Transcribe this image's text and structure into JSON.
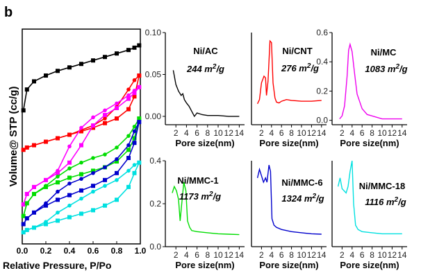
{
  "panel_label": "b",
  "chart_data": [
    {
      "id": "isotherm",
      "type": "line",
      "xlabel": "Relative Pressure, P/Po",
      "ylabel": "Volume@ STP (cc/g)",
      "xlim": [
        0,
        1
      ],
      "xticks": [
        "0.0",
        "0.2",
        "0.4",
        "0.6",
        "0.8",
        "1.0"
      ],
      "x": [
        0.01,
        0.04,
        0.1,
        0.2,
        0.3,
        0.4,
        0.5,
        0.6,
        0.7,
        0.8,
        0.9,
        0.95,
        0.99
      ],
      "series": [
        {
          "color": "#000000",
          "adsorption": [
            10,
            11.8,
            12.5,
            13,
            13.4,
            13.7,
            14.0,
            14.3,
            14.6,
            14.9,
            15.2,
            15.4,
            15.6
          ],
          "desorption": null
        },
        {
          "color": "#ff0000",
          "adsorption": [
            6.6,
            6.8,
            7.0,
            7.3,
            7.6,
            7.9,
            8.2,
            8.5,
            8.9,
            9.3,
            10.1,
            11.2,
            13.0
          ],
          "desorption": [
            6.6,
            6.8,
            7.0,
            7.3,
            7.6,
            7.9,
            8.3,
            8.7,
            9.3,
            10.3,
            11.8,
            12.6,
            13.0
          ]
        },
        {
          "color": "#ff00ff",
          "adsorption": [
            1.9,
            2.8,
            3.4,
            4.0,
            4.6,
            5.5,
            7.0,
            8.7,
            9.6,
            10.2,
            11.0,
            11.5,
            12.0
          ],
          "desorption": [
            1.9,
            2.8,
            3.4,
            4.0,
            4.8,
            6.9,
            8.5,
            9.4,
            10.0,
            10.6,
            11.3,
            11.7,
            12.0
          ]
        },
        {
          "color": "#00dd00",
          "adsorption": [
            0.9,
            2.0,
            2.8,
            3.4,
            3.8,
            4.2,
            4.5,
            4.8,
            5.1,
            5.6,
            6.6,
            7.6,
            9.3
          ],
          "desorption": [
            0.9,
            2.0,
            2.8,
            3.5,
            4.3,
            5.0,
            5.5,
            5.9,
            6.2,
            6.8,
            7.8,
            8.6,
            9.3
          ]
        },
        {
          "color": "#0000cc",
          "adsorption": [
            0.2,
            0.7,
            1.2,
            1.8,
            2.3,
            2.7,
            3.1,
            3.5,
            4.0,
            4.6,
            5.9,
            7.2,
            9.0
          ],
          "desorption": [
            0.2,
            0.7,
            1.2,
            2.0,
            3.0,
            3.7,
            4.1,
            4.6,
            5.1,
            5.8,
            7.0,
            8.2,
            9.0
          ]
        },
        {
          "color": "#00e0e0",
          "adsorption": [
            -0.5,
            -0.3,
            -0.1,
            0.2,
            0.5,
            0.8,
            1.1,
            1.4,
            1.8,
            2.3,
            3.4,
            4.6,
            5.5
          ],
          "desorption": [
            -0.5,
            -0.3,
            -0.1,
            0.4,
            1.2,
            1.8,
            2.4,
            3.0,
            3.5,
            4.0,
            4.8,
            5.3,
            5.5
          ]
        }
      ]
    },
    {
      "id": "psd-ac",
      "type": "line",
      "xlabel": "Pore size(nm)",
      "name": "Ni/AC",
      "area_value": "244",
      "area_unit": "m",
      "area_exp": "2",
      "area_tail": "/g",
      "color": "#000000",
      "xlim": [
        0,
        15
      ],
      "ylim": [
        -0.01,
        0.1
      ],
      "xticks": [
        "2",
        "4",
        "6",
        "8",
        "10",
        "12",
        "14"
      ],
      "yticks": [
        "0.00",
        "0.05",
        "0.10"
      ],
      "x": [
        1.5,
        2,
        2.5,
        3,
        3.3,
        3.6,
        4,
        4.5,
        5,
        5.5,
        6,
        7,
        8,
        10,
        12,
        14
      ],
      "y": [
        0.055,
        0.038,
        0.03,
        0.025,
        0.027,
        0.02,
        0.016,
        0.012,
        0.006,
        0,
        0.004,
        0.002,
        0.001,
        0.001,
        0,
        0
      ]
    },
    {
      "id": "psd-cnt",
      "type": "line",
      "xlabel": "Pore size(nm)",
      "name": "Ni/CNT",
      "area_value": "276",
      "area_unit": "m",
      "area_exp": "2",
      "area_tail": "/g",
      "color": "#ff0000",
      "xlim": [
        0,
        15
      ],
      "ylim": [
        -0.01,
        0.1
      ],
      "xticks": [
        "2",
        "4",
        "6",
        "8",
        "10",
        "12",
        "14"
      ],
      "yticks": [],
      "x": [
        1.2,
        1.6,
        2,
        2.5,
        2.8,
        3,
        3.3,
        3.7,
        4,
        4.3,
        4.7,
        5,
        5.5,
        6,
        7,
        8,
        10,
        12,
        14
      ],
      "y": [
        0.015,
        0.02,
        0.04,
        0.048,
        0.046,
        0.025,
        0.042,
        0.09,
        0.088,
        0.04,
        0.022,
        0.017,
        0.016,
        0.018,
        0.02,
        0.019,
        0.018,
        0.018,
        0.019
      ]
    },
    {
      "id": "psd-mc",
      "type": "line",
      "xlabel": "Pore size(nm)",
      "name": "Ni/MC",
      "area_value": "1083",
      "area_unit": "m",
      "area_exp": "2",
      "area_tail": "/g",
      "color": "#ee00ee",
      "xlim": [
        0,
        15
      ],
      "ylim": [
        -0.03,
        0.6
      ],
      "xticks": [
        "2",
        "4",
        "6",
        "8",
        "10",
        "12",
        "14"
      ],
      "yticks": [
        "0.0",
        "0.2",
        "0.4",
        "0.6"
      ],
      "x": [
        1.5,
        2,
        2.5,
        3,
        3.3,
        3.6,
        4,
        4.5,
        5,
        6,
        7,
        8,
        10,
        12,
        14
      ],
      "y": [
        0.01,
        0.03,
        0.1,
        0.3,
        0.48,
        0.52,
        0.47,
        0.32,
        0.18,
        0.08,
        0.04,
        0.03,
        0.01,
        0.01,
        0.01
      ]
    },
    {
      "id": "psd-mmc1",
      "type": "line",
      "xlabel": "Pore size(nm)",
      "name": "Ni/MMC-1",
      "area_value": "1173",
      "area_unit": "m",
      "area_exp": "2",
      "area_tail": "/g",
      "color": "#00dd00",
      "xlim": [
        0,
        15
      ],
      "ylim": [
        0,
        0.4
      ],
      "xticks": [
        "2",
        "4",
        "6",
        "8",
        "10",
        "12",
        "14"
      ],
      "yticks": [
        "0.0",
        "0.2",
        "0.4"
      ],
      "x": [
        1.3,
        1.7,
        2.1,
        2.5,
        2.8,
        3.1,
        3.5,
        3.9,
        4.2,
        4.6,
        5,
        6,
        8,
        10,
        12,
        14
      ],
      "y": [
        0.25,
        0.28,
        0.26,
        0.22,
        0.12,
        0.2,
        0.3,
        0.26,
        0.12,
        0.09,
        0.075,
        0.07,
        0.065,
        0.06,
        0.058,
        0.056
      ]
    },
    {
      "id": "psd-mmc6",
      "type": "line",
      "xlabel": "Pore size(nm)",
      "name": "Ni/MMC-6",
      "area_value": "1324",
      "area_unit": "m",
      "area_exp": "2",
      "area_tail": "/g",
      "color": "#0000cc",
      "xlim": [
        0,
        15
      ],
      "ylim": [
        0,
        0.4
      ],
      "xticks": [
        "2",
        "4",
        "6",
        "8",
        "10",
        "12",
        "14"
      ],
      "yticks": [],
      "x": [
        1.2,
        1.6,
        2,
        2.4,
        2.8,
        3.1,
        3.5,
        3.8,
        4.1,
        4.5,
        5,
        6,
        8,
        10,
        12,
        14
      ],
      "y": [
        0.32,
        0.36,
        0.33,
        0.3,
        0.32,
        0.3,
        0.38,
        0.35,
        0.13,
        0.1,
        0.09,
        0.08,
        0.07,
        0.065,
        0.06,
        0.058
      ]
    },
    {
      "id": "psd-mmc18",
      "type": "line",
      "xlabel": "Pore size(nm)",
      "name": "Ni/MMC-18",
      "area_value": "1116",
      "area_unit": "m",
      "area_exp": "2",
      "area_tail": "/g",
      "color": "#00e0e0",
      "xlim": [
        0,
        15
      ],
      "ylim": [
        0,
        0.4
      ],
      "xticks": [
        "2",
        "4",
        "6",
        "8",
        "10",
        "12",
        "14"
      ],
      "yticks": [],
      "x": [
        1.2,
        1.6,
        2,
        2.4,
        2.8,
        3.2,
        3.6,
        4,
        4.3,
        4.7,
        5.2,
        6,
        8,
        10,
        12,
        14
      ],
      "y": [
        0.28,
        0.32,
        0.27,
        0.26,
        0.25,
        0.28,
        0.35,
        0.4,
        0.2,
        0.1,
        0.08,
        0.07,
        0.065,
        0.06,
        0.06,
        0.06
      ]
    }
  ]
}
